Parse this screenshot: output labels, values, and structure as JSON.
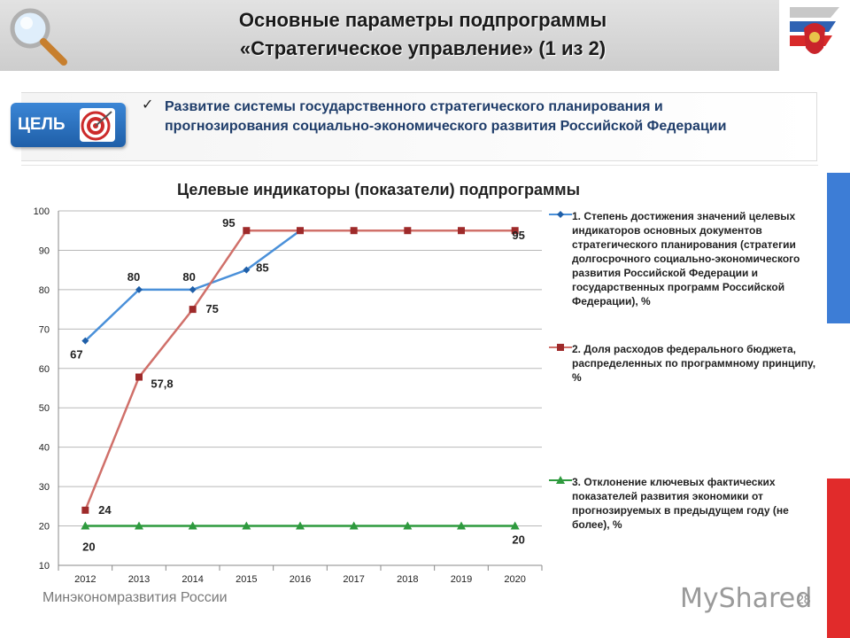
{
  "header": {
    "title_line1": "Основные параметры подпрограммы",
    "title_line2": "«Стратегическое управление» (1 из 2)"
  },
  "goal": {
    "badge_label": "ЦЕЛЬ",
    "text": "Развитие системы государственного стратегического планирования и прогнозирования социально-экономического развития Российской Федерации"
  },
  "chart_title": "Целевые индикаторы (показатели) подпрограммы",
  "chart_data": {
    "type": "line",
    "categories": [
      "2012",
      "2013",
      "2014",
      "2015",
      "2016",
      "2017",
      "2018",
      "2019",
      "2020"
    ],
    "ylim": [
      10,
      100
    ],
    "yticks": [
      10,
      20,
      30,
      40,
      50,
      60,
      70,
      80,
      90,
      100
    ],
    "grid": true,
    "legend_position": "right",
    "series": [
      {
        "name": "1. Степень достижения значений целевых индикаторов основных документов стратегического планирования (стратегии долгосрочного социально-экономического развития Российской Федерации и государственных программ Российской Федерации), %",
        "color": "#4a90d9",
        "marker": "diamond",
        "values": [
          67,
          80,
          80,
          85,
          95,
          null,
          null,
          null,
          null
        ],
        "labels": [
          "67",
          "80",
          "80",
          "85",
          "",
          "",
          "",
          "",
          ""
        ]
      },
      {
        "name": "2. Доля расходов федерального бюджета, распределенных по программному принципу, %",
        "color": "#d0706a",
        "marker": "square",
        "values": [
          24,
          57.8,
          75,
          95,
          95,
          95,
          95,
          95,
          95
        ],
        "labels": [
          "24",
          "57,8",
          "75",
          "95",
          "",
          "",
          "",
          "",
          "95"
        ]
      },
      {
        "name": "3. Отклонение ключевых фактических показателей развития экономики от прогнозируемых в предыдущем году (не более), %",
        "color": "#2e9a3e",
        "marker": "triangle",
        "values": [
          20,
          20,
          20,
          20,
          20,
          20,
          20,
          20,
          20
        ],
        "labels": [
          "20",
          "",
          "",
          "",
          "",
          "",
          "",
          "",
          "20"
        ]
      }
    ]
  },
  "footer": {
    "ministry": "Минэкономразвития России",
    "watermark": "MyShared",
    "page_number": "28"
  },
  "icons": {
    "magnifier": "magnifier-icon",
    "emblem": "coat-of-arms-icon",
    "target": "target-icon",
    "check": "checkmark-icon"
  },
  "colors": {
    "flag_blue": "#3d7dd6",
    "flag_red": "#e12b2b",
    "goal_badge": "#2a6fbf",
    "goal_text": "#1f3d6a"
  }
}
